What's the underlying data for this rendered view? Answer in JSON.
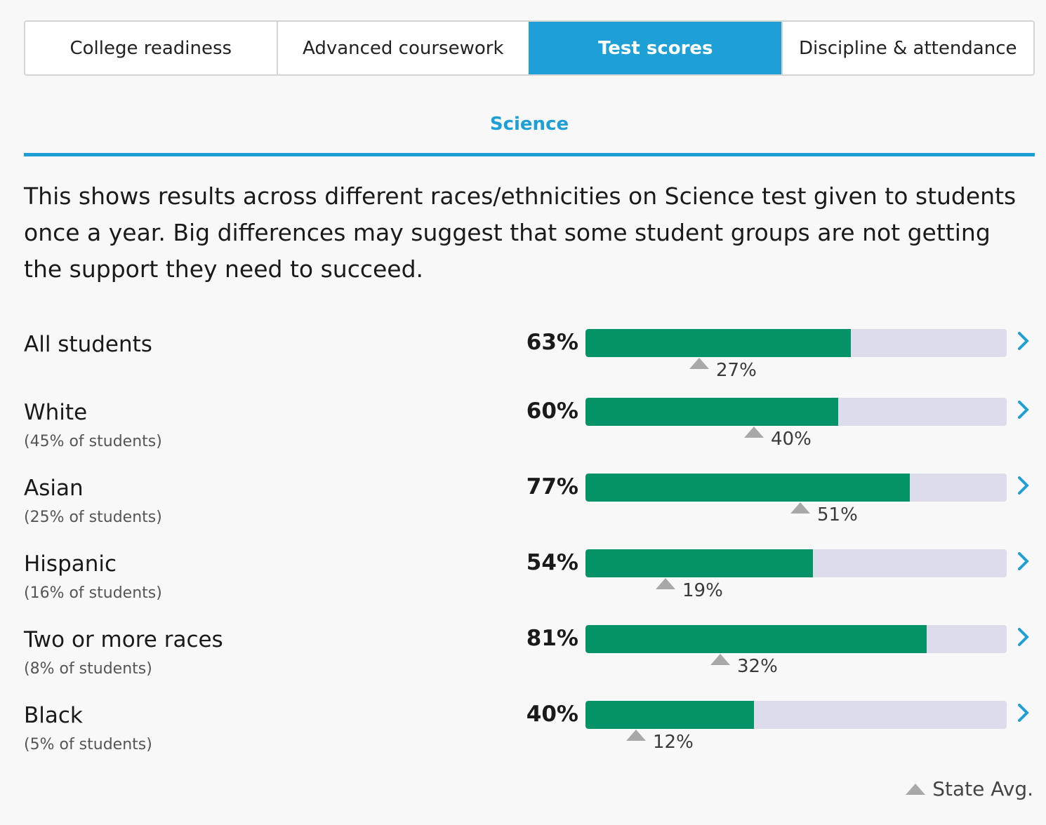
{
  "tabs": [
    {
      "label": "College readiness",
      "active": false
    },
    {
      "label": "Advanced coursework",
      "active": false
    },
    {
      "label": "Test scores",
      "active": true
    },
    {
      "label": "Discipline & attendance",
      "active": false
    }
  ],
  "subject": "Science",
  "description": "This shows results across different races/ethnicities on Science test given to students once a year. Big differences may suggest that some student groups are not getting the support they need to succeed.",
  "colors": {
    "accent": "#1e9fd6",
    "bar": "#049367",
    "track": "#dcdcec",
    "marker": "#a8a8a8"
  },
  "rows": [
    {
      "label": "All students",
      "sub": "",
      "value": 63,
      "value_text": "63%",
      "state_avg": 27,
      "state_avg_text": "27%"
    },
    {
      "label": "White",
      "sub": "(45% of students)",
      "value": 60,
      "value_text": "60%",
      "state_avg": 40,
      "state_avg_text": "40%"
    },
    {
      "label": "Asian",
      "sub": "(25% of students)",
      "value": 77,
      "value_text": "77%",
      "state_avg": 51,
      "state_avg_text": "51%"
    },
    {
      "label": "Hispanic",
      "sub": "(16% of students)",
      "value": 54,
      "value_text": "54%",
      "state_avg": 19,
      "state_avg_text": "19%"
    },
    {
      "label": "Two or more races",
      "sub": "(8% of students)",
      "value": 81,
      "value_text": "81%",
      "state_avg": 32,
      "state_avg_text": "32%"
    },
    {
      "label": "Black",
      "sub": "(5% of students)",
      "value": 40,
      "value_text": "40%",
      "state_avg": 12,
      "state_avg_text": "12%"
    }
  ],
  "legend": {
    "label": "State Avg.",
    "icon": "triangle-up-icon"
  },
  "row_icon": "chevron-right-icon"
}
